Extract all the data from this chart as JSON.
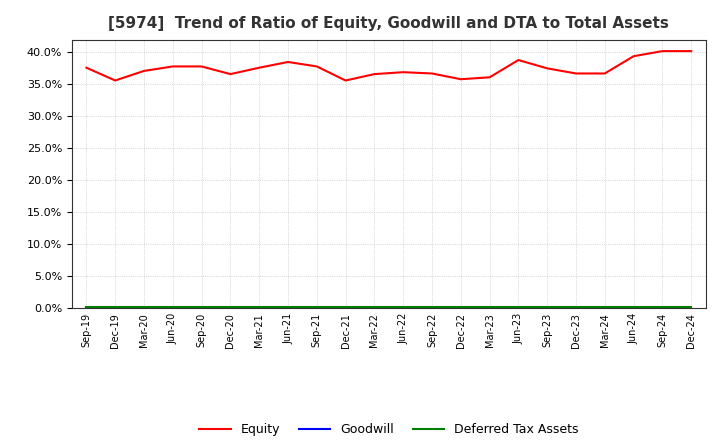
{
  "title": "[5974]  Trend of Ratio of Equity, Goodwill and DTA to Total Assets",
  "x_labels": [
    "Sep-19",
    "Dec-19",
    "Mar-20",
    "Jun-20",
    "Sep-20",
    "Dec-20",
    "Mar-21",
    "Jun-21",
    "Sep-21",
    "Dec-21",
    "Mar-22",
    "Jun-22",
    "Sep-22",
    "Dec-22",
    "Mar-23",
    "Jun-23",
    "Sep-23",
    "Dec-23",
    "Mar-24",
    "Jun-24",
    "Sep-24",
    "Dec-24"
  ],
  "equity": [
    0.376,
    0.356,
    0.371,
    0.378,
    0.378,
    0.366,
    0.376,
    0.385,
    0.378,
    0.356,
    0.366,
    0.369,
    0.367,
    0.358,
    0.361,
    0.388,
    0.375,
    0.367,
    0.367,
    0.394,
    0.402,
    0.402
  ],
  "goodwill": [
    0.0,
    0.0,
    0.0,
    0.0,
    0.0,
    0.0,
    0.0,
    0.0,
    0.0,
    0.0,
    0.0,
    0.0,
    0.0,
    0.0,
    0.0,
    0.0,
    0.0,
    0.0,
    0.0,
    0.0,
    0.0,
    0.0
  ],
  "dta": [
    0.002,
    0.002,
    0.002,
    0.002,
    0.002,
    0.002,
    0.002,
    0.002,
    0.002,
    0.002,
    0.002,
    0.002,
    0.002,
    0.002,
    0.002,
    0.002,
    0.002,
    0.002,
    0.002,
    0.002,
    0.002,
    0.002
  ],
  "equity_color": "#FF0000",
  "goodwill_color": "#0000FF",
  "dta_color": "#008000",
  "ylim": [
    0.0,
    0.42
  ],
  "yticks": [
    0.0,
    0.05,
    0.1,
    0.15,
    0.2,
    0.25,
    0.3,
    0.35,
    0.4
  ],
  "background_color": "#FFFFFF",
  "plot_bg_color": "#FFFFFF",
  "grid_color": "#BBBBBB",
  "title_fontsize": 11,
  "legend_labels": [
    "Equity",
    "Goodwill",
    "Deferred Tax Assets"
  ]
}
